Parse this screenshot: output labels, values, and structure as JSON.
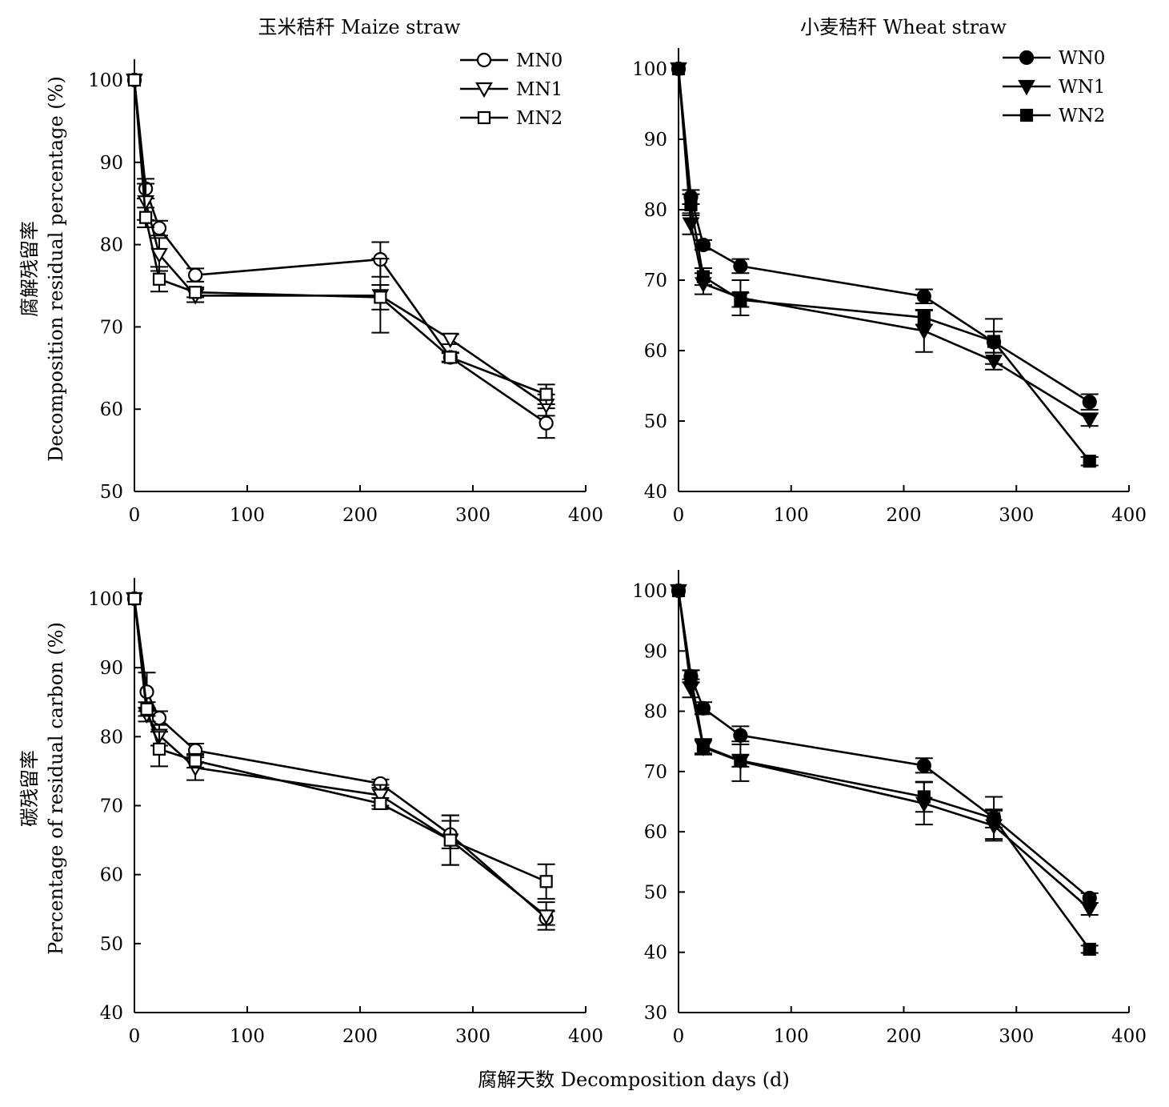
{
  "figure": {
    "col_titles": [
      "玉米秸秆 Maize straw",
      "小麦秸秆 Wheat straw"
    ],
    "row_ylabels": [
      [
        "腐解残留率",
        "Decomposition residual percentage (%)"
      ],
      [
        "碳残留率",
        "Percentage of residual carbon (%)"
      ]
    ],
    "xlabel": "腐解天数 Decomposition days (d)"
  },
  "colors": {
    "line": "#000000",
    "open_fill": "#ffffff",
    "filled_fill": "#000000"
  },
  "chart_data": [
    {
      "id": "maize-residual",
      "type": "line",
      "title": "",
      "xlabel": "",
      "ylabel": "",
      "xlim": [
        0,
        400
      ],
      "ylim": [
        50,
        100
      ],
      "xticks": [
        0,
        100,
        200,
        300,
        400
      ],
      "yticks": [
        50,
        60,
        70,
        80,
        90,
        100
      ],
      "legend": "top-right",
      "grid": false,
      "x": [
        0,
        10,
        22,
        54,
        218,
        280,
        365
      ],
      "series": [
        {
          "name": "MN0",
          "marker": "circle-open",
          "values": [
            100,
            86.8,
            82.0,
            76.3,
            78.2,
            66.3,
            58.3
          ],
          "errors": [
            0,
            1.2,
            0.9,
            0.8,
            2.1,
            0.5,
            1.8
          ]
        },
        {
          "name": "MN1",
          "marker": "triangle-down-open",
          "values": [
            100,
            85.2,
            78.8,
            73.8,
            73.8,
            68.5,
            60.5
          ],
          "errors": [
            0,
            2.2,
            2.0,
            0.8,
            4.5,
            0.6,
            1.3
          ]
        },
        {
          "name": "MN2",
          "marker": "square-open",
          "values": [
            100,
            83.3,
            75.8,
            74.2,
            73.6,
            66.3,
            61.8
          ],
          "errors": [
            0,
            1.2,
            1.5,
            0.6,
            1.5,
            0.6,
            1.2
          ]
        }
      ]
    },
    {
      "id": "wheat-residual",
      "type": "line",
      "title": "",
      "xlabel": "",
      "ylabel": "",
      "xlim": [
        0,
        400
      ],
      "ylim": [
        40,
        100
      ],
      "xticks": [
        0,
        100,
        200,
        300,
        400
      ],
      "yticks": [
        40,
        50,
        60,
        70,
        80,
        90,
        100
      ],
      "legend": "top-right",
      "grid": false,
      "x": [
        0,
        11,
        22,
        55,
        218,
        280,
        365
      ],
      "series": [
        {
          "name": "WN0",
          "marker": "circle-filled",
          "values": [
            100,
            81.8,
            75.0,
            72.0,
            67.7,
            61.2,
            52.7
          ],
          "errors": [
            0,
            1.0,
            0.7,
            1.0,
            1.0,
            1.5,
            1.1
          ]
        },
        {
          "name": "WN1",
          "marker": "triangle-down-filled",
          "values": [
            100,
            78.0,
            69.5,
            67.5,
            62.8,
            58.5,
            50.2
          ],
          "errors": [
            0,
            1.5,
            1.5,
            2.5,
            3.0,
            1.2,
            0.9
          ]
        },
        {
          "name": "WN2",
          "marker": "square-filled",
          "values": [
            100,
            80.7,
            70.5,
            67.2,
            64.7,
            61.3,
            44.3
          ],
          "errors": [
            0,
            1.5,
            1.2,
            1.0,
            1.0,
            3.2,
            0.6
          ]
        }
      ]
    },
    {
      "id": "maize-carbon",
      "type": "line",
      "title": "",
      "xlabel": "",
      "ylabel": "",
      "xlim": [
        0,
        400
      ],
      "ylim": [
        40,
        100
      ],
      "xticks": [
        0,
        100,
        200,
        300,
        400
      ],
      "yticks": [
        40,
        50,
        60,
        70,
        80,
        90,
        100
      ],
      "legend": "none",
      "grid": false,
      "x": [
        0,
        11,
        22,
        54,
        218,
        280,
        365
      ],
      "series": [
        {
          "name": "MN0",
          "marker": "circle-open",
          "values": [
            100,
            86.5,
            82.7,
            78.0,
            73.2,
            65.8,
            53.7
          ],
          "errors": [
            0,
            2.8,
            1.0,
            1.0,
            0.6,
            2.0,
            1.0
          ]
        },
        {
          "name": "MN1",
          "marker": "triangle-down-open",
          "values": [
            100,
            83.2,
            80.2,
            75.5,
            71.5,
            65.0,
            54.0
          ],
          "errors": [
            0,
            1.0,
            1.5,
            1.8,
            1.5,
            3.6,
            2.0
          ]
        },
        {
          "name": "MN2",
          "marker": "square-open",
          "values": [
            100,
            84.0,
            78.2,
            76.5,
            70.3,
            65.0,
            59.0
          ],
          "errors": [
            0,
            1.0,
            2.5,
            1.0,
            0.8,
            3.6,
            2.5
          ]
        }
      ]
    },
    {
      "id": "wheat-carbon",
      "type": "line",
      "title": "",
      "xlabel": "",
      "ylabel": "",
      "xlim": [
        0,
        400
      ],
      "ylim": [
        30,
        100
      ],
      "xticks": [
        0,
        100,
        200,
        300,
        400
      ],
      "yticks": [
        30,
        40,
        50,
        60,
        70,
        80,
        90,
        100
      ],
      "legend": "none",
      "grid": false,
      "x": [
        0,
        11,
        22,
        55,
        218,
        280,
        365
      ],
      "series": [
        {
          "name": "WN0",
          "marker": "circle-filled",
          "values": [
            100,
            85.8,
            80.5,
            76.0,
            71.0,
            62.3,
            49.0
          ],
          "errors": [
            0,
            1.0,
            1.0,
            1.5,
            1.2,
            3.5,
            0.8
          ]
        },
        {
          "name": "WN1",
          "marker": "triangle-down-filled",
          "values": [
            100,
            83.8,
            74.0,
            71.7,
            64.7,
            61.0,
            47.2
          ],
          "errors": [
            0,
            1.5,
            1.2,
            3.3,
            3.5,
            2.5,
            1.0
          ]
        },
        {
          "name": "WN2",
          "marker": "square-filled",
          "values": [
            100,
            85.8,
            74.2,
            71.8,
            65.8,
            62.2,
            40.5
          ],
          "errors": [
            0,
            1.0,
            1.2,
            1.0,
            2.5,
            1.5,
            0.6
          ]
        }
      ]
    }
  ]
}
